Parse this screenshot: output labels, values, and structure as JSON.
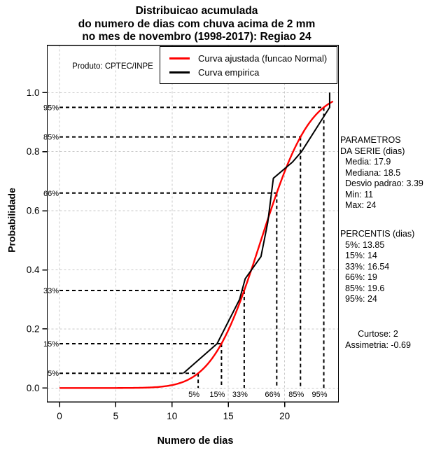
{
  "title": {
    "line1": "Distribuicao acumulada",
    "line2": "do numero de dias com chuva acima de 2 mm",
    "line3": "no mes de novembro (1998-2017): Regiao 24"
  },
  "produto_label": "Produto: CPTEC/INPE",
  "legend": {
    "items": [
      {
        "label": "Curva ajustada (funcao Normal)",
        "color": "#ff0000"
      },
      {
        "label": "Curva empirica",
        "color": "#000000"
      }
    ]
  },
  "stats": {
    "params_header1": "PARAMETROS",
    "params_header2": "DA SERIE (dias)",
    "params_items": [
      "Media: 17.9",
      "Mediana: 18.5",
      "Desvio padrao: 3.39",
      "Min: 11",
      "Max: 24"
    ],
    "percentis_header": "PERCENTIS (dias)",
    "percentis_items": [
      "5%: 13.85",
      "15%: 14",
      "33%: 16.54",
      "66%: 19",
      "85%: 19.6",
      "95%: 24"
    ],
    "curtose": "Curtose: 2",
    "assimetria": "Assimetria: -0.69"
  },
  "axes": {
    "xlabel": "Numero de dias",
    "ylabel": "Probabilidade"
  },
  "chart_data": {
    "type": "line",
    "title": "Distribuicao acumulada do numero de dias com chuva acima de 2 mm no mes de novembro (1998-2017): Regiao 24",
    "xlabel": "Numero de dias",
    "ylabel": "Probabilidade",
    "x_ticks": [
      0,
      5,
      10,
      15,
      20
    ],
    "y_ticks": [
      0,
      0.2,
      0.4,
      0.6,
      0.8,
      1
    ],
    "xlim": [
      -1.1,
      24.8
    ],
    "ylim": [
      -0.05,
      1.16
    ],
    "grid": true,
    "legend_position": "top",
    "grid_color": "#c8c8c8",
    "series": [
      {
        "name": "Curva ajustada (funcao Normal)",
        "type": "normal_cdf",
        "color": "#ff0000",
        "mean": 17.9,
        "sd": 3.39,
        "x_draw_range": [
          0,
          24.35
        ]
      },
      {
        "name": "Curva empirica",
        "type": "polyline",
        "color": "#000000",
        "points": [
          [
            11,
            0.05
          ],
          [
            14,
            0.15
          ],
          [
            16,
            0.3
          ],
          [
            16.5,
            0.37
          ],
          [
            17.9,
            0.445
          ],
          [
            18.5,
            0.56
          ],
          [
            19,
            0.71
          ],
          [
            20.7,
            0.765
          ],
          [
            21.5,
            0.8
          ],
          [
            24,
            0.95
          ],
          [
            24,
            1.0
          ]
        ]
      }
    ],
    "percentile_guides": [
      {
        "label": "5%",
        "p": 0.05,
        "x": 12.32
      },
      {
        "label": "15%",
        "p": 0.15,
        "x": 14.39
      },
      {
        "label": "33%",
        "p": 0.33,
        "x": 16.41
      },
      {
        "label": "66%",
        "p": 0.66,
        "x": 19.3
      },
      {
        "label": "85%",
        "p": 0.85,
        "x": 21.41
      },
      {
        "label": "95%",
        "p": 0.95,
        "x": 23.48
      }
    ]
  }
}
